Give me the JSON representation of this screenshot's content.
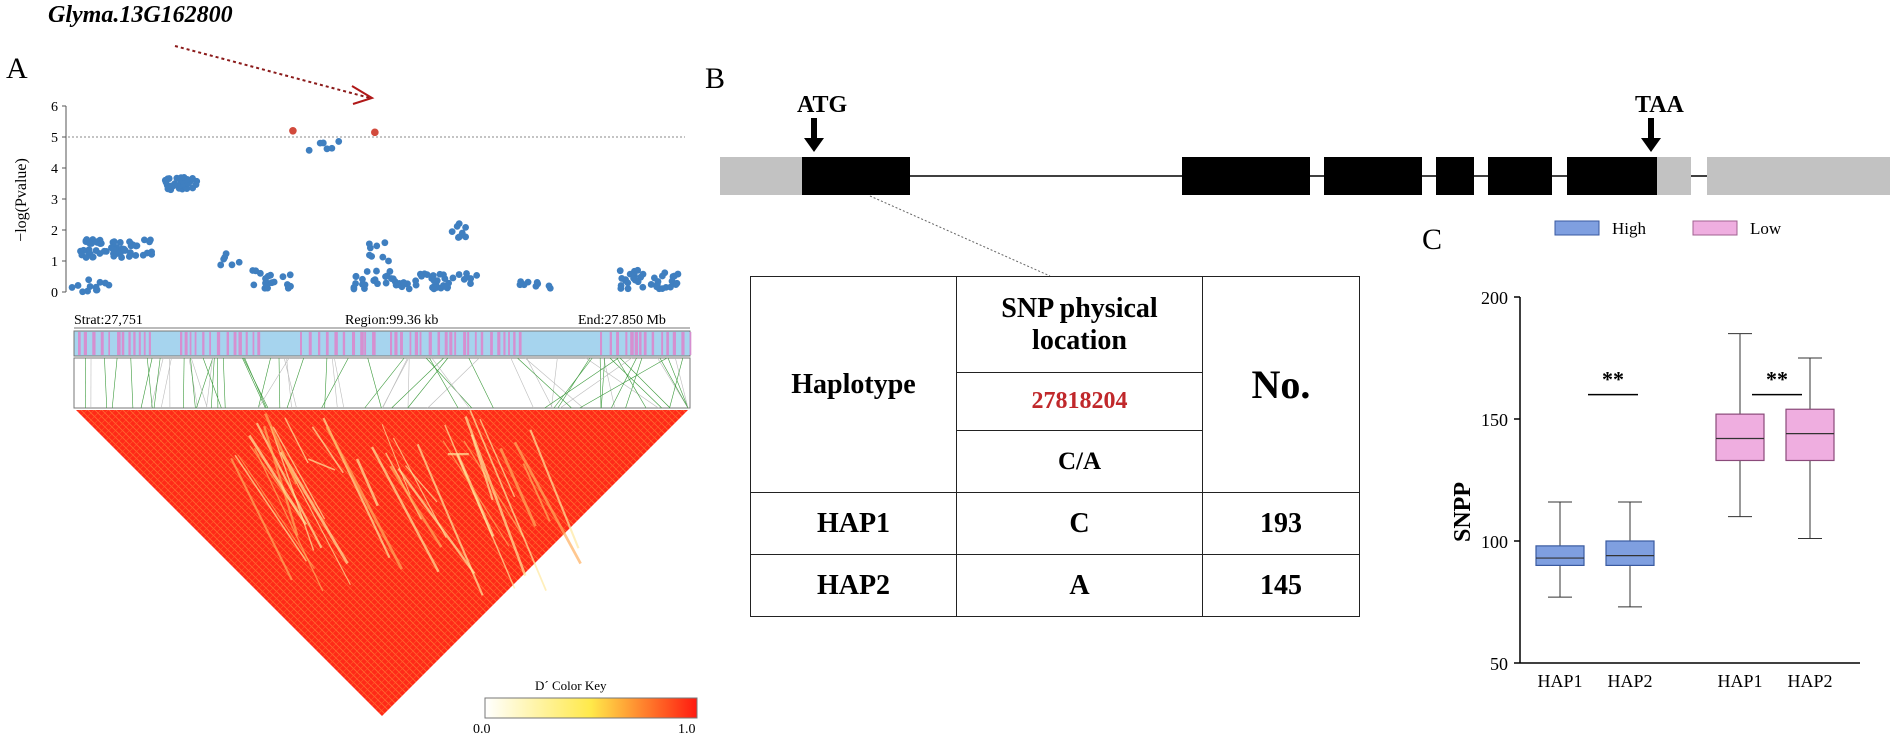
{
  "panel_a": {
    "letter": "A",
    "gene_label": "Glyma.13G162800",
    "ylabel": "−log(Pvalue)",
    "region": {
      "start": "Strat:27,751",
      "mid": "Region:99.36 kb",
      "end": "End:27.850 Mb"
    },
    "color_key": {
      "title": "D´ Color Key",
      "min": "0.0",
      "max": "1.0"
    }
  },
  "panel_b": {
    "letter": "B",
    "start_codon": "ATG",
    "stop_codon": "TAA",
    "table": {
      "col_haplotype": "Haplotype",
      "col_snp_line1": "SNP physical",
      "col_snp_line2": "location",
      "snp_position": "27818204",
      "snp_alleles": "C/A",
      "col_no": "No.",
      "rows": [
        {
          "hap": "HAP1",
          "allele": "C",
          "count": "193"
        },
        {
          "hap": "HAP2",
          "allele": "A",
          "count": "145"
        }
      ]
    }
  },
  "panel_c": {
    "letter": "C",
    "legend_high": "High",
    "legend_low": "Low",
    "sig1": "**",
    "sig2": "**"
  },
  "chart_data": [
    {
      "type": "scatter",
      "ylabel": "−log(Pvalue)",
      "ylim": [
        0,
        6
      ],
      "yticks": [
        0,
        1,
        2,
        3,
        4,
        5,
        6
      ],
      "threshold": 5,
      "xlim": [
        27.751,
        27.85
      ],
      "x_start_label": "Strat:27,751",
      "x_mid_label": "Region:99.36 kb",
      "x_end_label": "End:27.850 Mb",
      "colors": {
        "points": "#3f7fc0",
        "highlight": "#d24a3c"
      },
      "highlight_points": [
        [
          27.787,
          5.2
        ],
        [
          27.8,
          5.15
        ]
      ]
    },
    {
      "type": "box",
      "ylabel": "SNPP",
      "ylim": [
        50,
        200
      ],
      "yticks": [
        50,
        100,
        150,
        200
      ],
      "groups": [
        {
          "condition": "High",
          "color": "#7f9fe0",
          "boxes": [
            {
              "label": "HAP1",
              "min": 77,
              "q1": 90,
              "median": 93,
              "q3": 98,
              "max": 116
            },
            {
              "label": "HAP2",
              "min": 73,
              "q1": 90,
              "median": 94,
              "q3": 100,
              "max": 116
            }
          ]
        },
        {
          "condition": "Low",
          "color": "#efaee0",
          "boxes": [
            {
              "label": "HAP1",
              "min": 110,
              "q1": 133,
              "median": 142,
              "q3": 152,
              "max": 185
            },
            {
              "label": "HAP2",
              "min": 101,
              "q1": 133,
              "median": 144,
              "q3": 154,
              "max": 175
            }
          ]
        }
      ]
    }
  ]
}
